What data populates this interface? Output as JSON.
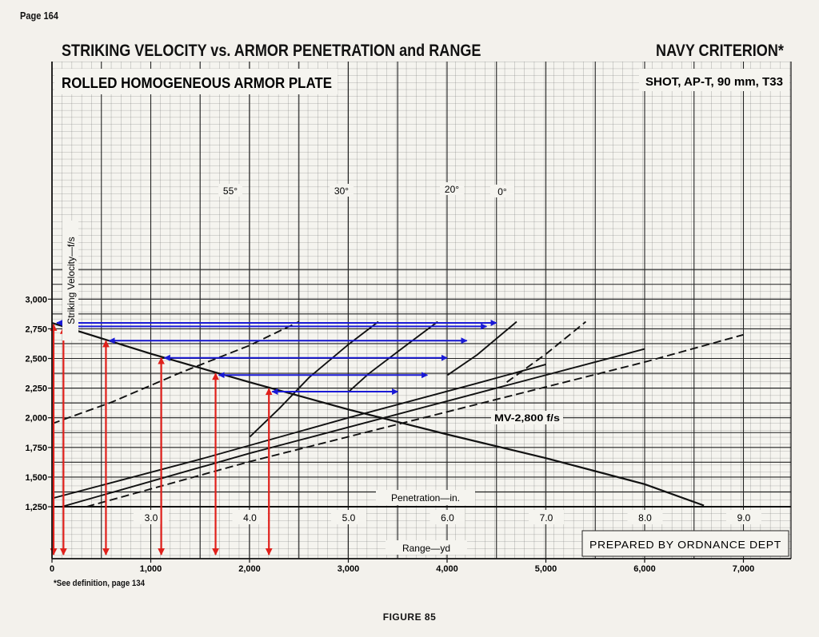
{
  "page_number": "Page 164",
  "title": "STRIKING VELOCITY vs. ARMOR PENETRATION and RANGE",
  "criterion": "NAVY CRITERION*",
  "subtitle": "ROLLED HOMOGENEOUS ARMOR PLATE",
  "projectile": "SHOT, AP-T, 90 mm, T33",
  "prepared_by": "PREPARED BY ORDNANCE DEPT",
  "footnote": "*See definition, page 134",
  "figure": "FIGURE 85",
  "chart_data": {
    "type": "line",
    "ylabel": "Striking Velocity—f/s",
    "xlabel_range": "Range—yd",
    "xlabel_penetration": "Penetration—in.",
    "range_ticks": [
      "0",
      "1,000",
      "2,000",
      "3,000",
      "4,000",
      "5,000",
      "6,000",
      "7,000"
    ],
    "range_tick_values": [
      0,
      1000,
      2000,
      3000,
      4000,
      5000,
      6000,
      7000
    ],
    "velocity_ticks": [
      "1,250",
      "1,500",
      "1,750",
      "2,000",
      "2,250",
      "2,500",
      "2,750",
      "3,000"
    ],
    "velocity_tick_values": [
      1250,
      1500,
      1750,
      2000,
      2250,
      2500,
      2750,
      3000
    ],
    "penetration_ticks": [
      "3.0",
      "4.0",
      "5.0",
      "6.0",
      "7.0",
      "8.0",
      "9.0"
    ],
    "penetration_tick_values": [
      3,
      4,
      5,
      6,
      7,
      8,
      9
    ],
    "xlim": [
      0,
      7500
    ],
    "ylim": [
      1050,
      3400
    ],
    "grid": true,
    "velocity_curve": {
      "label": "MV-2,800 f/s",
      "points": [
        [
          0,
          2800
        ],
        [
          1000,
          2540
        ],
        [
          2000,
          2300
        ],
        [
          3000,
          2070
        ],
        [
          4000,
          1860
        ],
        [
          5000,
          1660
        ],
        [
          6000,
          1440
        ],
        [
          6600,
          1260
        ]
      ]
    },
    "obliquity_curves": [
      {
        "name": "55°",
        "style": "solid",
        "points": [
          [
            4.0,
            1840
          ],
          [
            4.3,
            2080
          ],
          [
            4.6,
            2340
          ],
          [
            5.0,
            2620
          ],
          [
            5.3,
            2810
          ]
        ]
      },
      {
        "name": "30°",
        "style": "solid",
        "points": [
          [
            5.0,
            2220
          ],
          [
            5.2,
            2370
          ],
          [
            5.5,
            2560
          ],
          [
            5.9,
            2810
          ]
        ]
      },
      {
        "name": "20°",
        "style": "solid",
        "points": [
          [
            6.0,
            2360
          ],
          [
            6.3,
            2530
          ],
          [
            6.7,
            2810
          ]
        ]
      },
      {
        "name": "0°",
        "style": "dashed",
        "points": [
          [
            6.6,
            2300
          ],
          [
            7.0,
            2540
          ],
          [
            7.4,
            2810
          ]
        ]
      }
    ],
    "obliquity_lines": [
      {
        "name": "55°",
        "style": "dashed",
        "points": [
          [
            0,
            1950
          ],
          [
            0.6,
            2130
          ],
          [
            1.3,
            2380
          ],
          [
            2.0,
            2610
          ],
          [
            2.5,
            2810
          ]
        ]
      },
      {
        "name": "30°",
        "style": "solid",
        "points": [
          [
            0,
            1320
          ],
          [
            1.5,
            1650
          ],
          [
            3.0,
            2000
          ],
          [
            4.3,
            2290
          ],
          [
            5.0,
            2450
          ]
        ]
      },
      {
        "name": "20°",
        "style": "solid",
        "points": [
          [
            0.1,
            1250
          ],
          [
            2.0,
            1700
          ],
          [
            4.0,
            2140
          ],
          [
            6.0,
            2580
          ]
        ]
      },
      {
        "name": "0°",
        "style": "dashed",
        "points": [
          [
            0.35,
            1250
          ],
          [
            2.0,
            1630
          ],
          [
            4.0,
            2050
          ],
          [
            6.0,
            2470
          ],
          [
            7.0,
            2700
          ]
        ]
      }
    ],
    "annotation_vertical_arrows": [
      0,
      100,
      530,
      1090,
      1640,
      2180
    ],
    "annotation_horizontal_arrows": [
      {
        "y": 2800,
        "x_from": 0,
        "x_to": 4500
      },
      {
        "y": 2770,
        "x_from": 100,
        "x_to": 4400
      },
      {
        "y": 2650,
        "x_from": 530,
        "x_to": 4200
      },
      {
        "y": 2505,
        "x_from": 1090,
        "x_to": 4000
      },
      {
        "y": 2360,
        "x_from": 1640,
        "x_to": 3800
      },
      {
        "y": 2220,
        "x_from": 2180,
        "x_to": 3500
      }
    ]
  }
}
